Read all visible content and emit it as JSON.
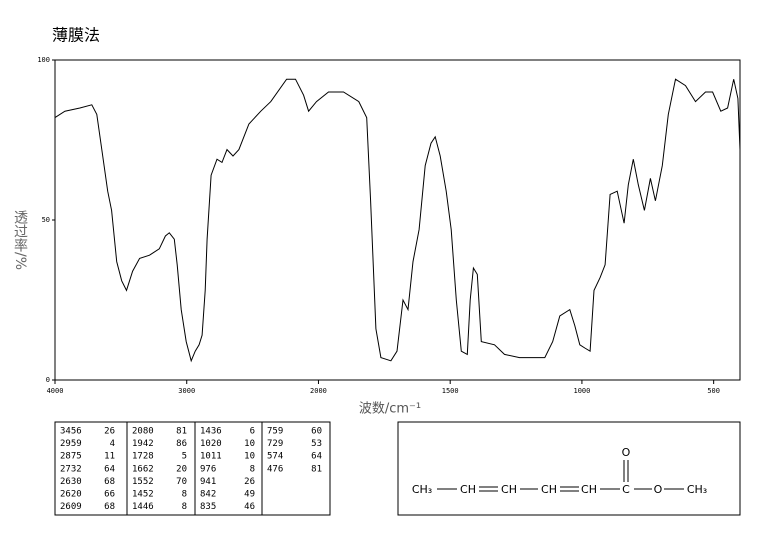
{
  "chart_data": {
    "type": "line",
    "title": "薄膜法",
    "xlabel": "波数/cm⁻¹",
    "ylabel": "透过率/%",
    "x": [
      4000,
      3925,
      3811,
      3721,
      3683,
      3645,
      3600,
      3570,
      3532,
      3494,
      3457,
      3411,
      3358,
      3283,
      3208,
      3162,
      3132,
      3094,
      3072,
      3042,
      3004,
      2966,
      2936,
      2906,
      2883,
      2860,
      2845,
      2815,
      2770,
      2732,
      2694,
      2649,
      2604,
      2528,
      2438,
      2362,
      2242,
      2174,
      2113,
      2075,
      2015,
      1962,
      1905,
      1847,
      1817,
      1802,
      1782,
      1763,
      1725,
      1702,
      1679,
      1660,
      1641,
      1618,
      1595,
      1573,
      1557,
      1538,
      1515,
      1496,
      1477,
      1458,
      1435,
      1424,
      1412,
      1397,
      1382,
      1332,
      1294,
      1237,
      1141,
      1111,
      1084,
      1046,
      1027,
      1008,
      989,
      969,
      954,
      931,
      912,
      893,
      866,
      840,
      824,
      805,
      786,
      763,
      740,
      721,
      695,
      672,
      645,
      607,
      569,
      531,
      504,
      473,
      447,
      424,
      408,
      400
    ],
    "values": [
      82,
      84,
      85,
      86,
      83,
      72,
      59,
      53,
      37,
      31,
      28,
      34,
      38,
      39,
      41,
      45,
      46,
      44,
      36,
      22,
      12,
      6,
      9,
      11,
      14,
      28,
      44,
      64,
      69,
      68,
      72,
      70,
      72,
      80,
      84,
      87,
      94,
      94,
      89,
      84,
      87,
      90,
      90,
      87,
      82,
      56,
      16,
      7,
      6,
      9,
      25,
      22,
      37,
      47,
      67,
      74,
      76,
      70,
      59,
      47,
      25,
      9,
      8,
      25,
      35,
      33,
      12,
      11,
      8,
      7,
      7,
      12,
      20,
      22,
      17,
      11,
      10,
      9,
      28,
      32,
      36,
      58,
      59,
      49,
      61,
      69,
      61,
      53,
      63,
      56,
      67,
      83,
      94,
      92,
      87,
      90,
      90,
      84,
      85,
      94,
      88,
      72
    ],
    "color": "#000000",
    "xlim": [
      4000,
      400
    ],
    "ylim": [
      0,
      100
    ],
    "x_scale": {
      "break": 2000,
      "ratio": 2
    },
    "xticks": [
      4000,
      3000,
      2000,
      1500,
      1000,
      500
    ],
    "yticks": [
      0,
      50,
      100
    ]
  },
  "peak_table": [
    [
      [
        3456,
        26
      ],
      [
        2959,
        4
      ],
      [
        2875,
        11
      ],
      [
        2732,
        64
      ],
      [
        2630,
        68
      ],
      [
        2620,
        66
      ],
      [
        2609,
        68
      ]
    ],
    [
      [
        2080,
        81
      ],
      [
        1942,
        86
      ],
      [
        1728,
        5
      ],
      [
        1662,
        20
      ],
      [
        1552,
        70
      ],
      [
        1452,
        8
      ],
      [
        1446,
        8
      ]
    ],
    [
      [
        1436,
        6
      ],
      [
        1020,
        10
      ],
      [
        1011,
        10
      ],
      [
        976,
        8
      ],
      [
        941,
        26
      ],
      [
        842,
        49
      ],
      [
        835,
        46
      ]
    ],
    [
      [
        759,
        60
      ],
      [
        729,
        53
      ],
      [
        574,
        64
      ],
      [
        476,
        81
      ]
    ]
  ],
  "structure": {
    "groups": [
      "CH₃",
      "CH",
      "CH",
      "CH",
      "CH",
      "C",
      "O",
      "CH₃"
    ],
    "carbonyl": "O"
  }
}
